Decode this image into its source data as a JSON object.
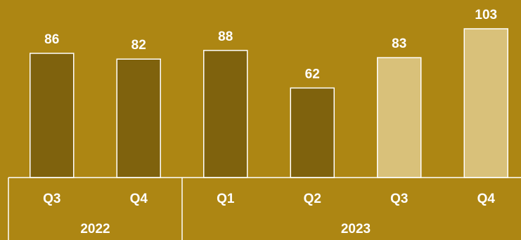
{
  "chart_data": {
    "type": "bar",
    "categories": [
      "Q3",
      "Q4",
      "Q1",
      "Q2",
      "Q3",
      "Q4"
    ],
    "groups": [
      {
        "label": "2022",
        "count": 2
      },
      {
        "label": "2023",
        "count": 4
      }
    ],
    "values": [
      86,
      82,
      88,
      62,
      83,
      103
    ],
    "bar_colors": [
      "#7F620D",
      "#7F620D",
      "#7F620D",
      "#7F620D",
      "#D9C17A",
      "#D9C17A"
    ],
    "ylim": [
      0,
      103
    ],
    "title": "",
    "xlabel": "",
    "ylabel": "",
    "grid": false,
    "legend": "none"
  },
  "colors": {
    "background": "#AD8613",
    "dark_bar": "#7F620D",
    "light_bar": "#D9C17A",
    "outline": "#FFFFFF",
    "text": "#FFFFFF"
  }
}
